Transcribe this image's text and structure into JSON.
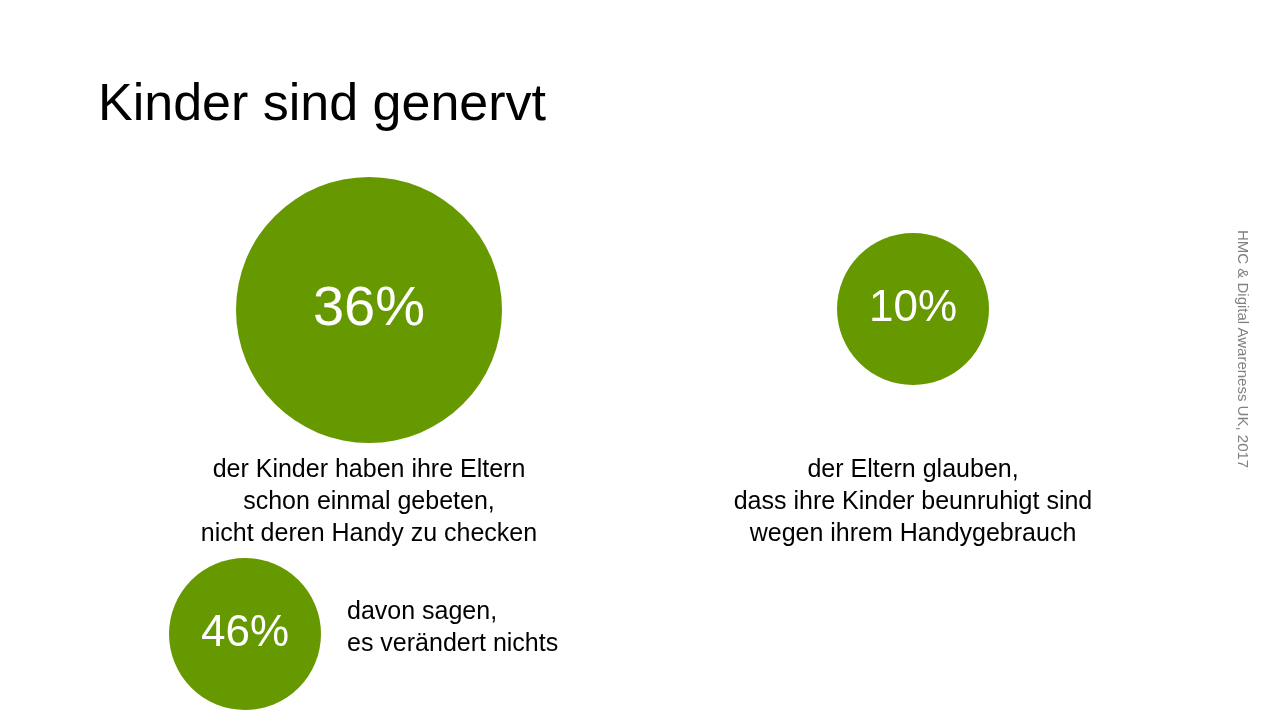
{
  "chart_data": {
    "type": "other",
    "title": "Kinder sind genervt",
    "categories": [
      "der Kinder haben ihre Eltern\nschon einmal gebeten,\nnicht deren Handy zu checken",
      "der Eltern glauben,\ndass ihre Kinder beunruhigt sind\nwegen ihrem Handygebrauch",
      "davon sagen,\nes verändert nichts"
    ],
    "values": [
      36,
      10,
      46
    ],
    "value_labels": [
      "36%",
      "10%",
      "46%"
    ],
    "colors": [
      "#669900",
      "#669900",
      "#669900"
    ],
    "annotations": [
      "HMC & Digital Awareness UK, 2017"
    ]
  }
}
